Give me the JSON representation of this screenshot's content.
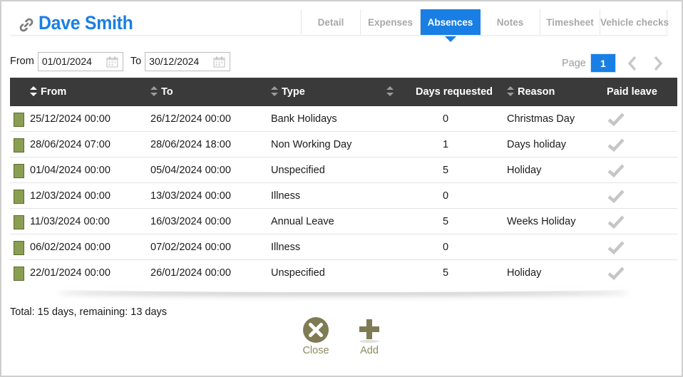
{
  "header": {
    "title": "Dave Smith",
    "accent_color": "#1a7fe4",
    "icon": "link-icon"
  },
  "tabs": [
    {
      "label": "Detail",
      "active": false
    },
    {
      "label": "Expenses",
      "active": false
    },
    {
      "label": "Absences",
      "active": true
    },
    {
      "label": "Notes",
      "active": false
    },
    {
      "label": "Timesheet",
      "active": false
    },
    {
      "label": "Vehicle checks",
      "active": false
    }
  ],
  "filters": {
    "from_label": "From",
    "from_value": "01/01/2024",
    "to_label": "To",
    "to_value": "30/12/2024"
  },
  "pager": {
    "label": "Page",
    "current": "1"
  },
  "table": {
    "columns": [
      "From",
      "To",
      "Type",
      "",
      "Days requested",
      "Reason",
      "Paid leave"
    ],
    "rows": [
      {
        "from": "25/12/2024 00:00",
        "to": "26/12/2024 00:00",
        "type": "Bank Holidays",
        "days": "0",
        "reason": "Christmas Day",
        "paid": true
      },
      {
        "from": "28/06/2024 07:00",
        "to": "28/06/2024 18:00",
        "type": "Non Working Day",
        "days": "1",
        "reason": "Days holiday",
        "paid": true
      },
      {
        "from": "01/04/2024 00:00",
        "to": "05/04/2024 00:00",
        "type": "Unspecified",
        "days": "5",
        "reason": "Holiday",
        "paid": true
      },
      {
        "from": "12/03/2024 00:00",
        "to": "13/03/2024 00:00",
        "type": "Illness",
        "days": "0",
        "reason": "",
        "paid": true
      },
      {
        "from": "11/03/2024 00:00",
        "to": "16/03/2024 00:00",
        "type": "Annual Leave",
        "days": "5",
        "reason": "Weeks Holiday",
        "paid": true
      },
      {
        "from": "06/02/2024 00:00",
        "to": "07/02/2024 00:00",
        "type": "Illness",
        "days": "0",
        "reason": "",
        "paid": true
      },
      {
        "from": "22/01/2024 00:00",
        "to": "26/01/2024 00:00",
        "type": "Unspecified",
        "days": "5",
        "reason": "Holiday",
        "paid": true
      }
    ],
    "swatch_color": "#8a9e52"
  },
  "summary": {
    "total_text": "Total: 15 days, remaining: 13 days"
  },
  "actions": {
    "close_label": "Close",
    "add_label": "Add",
    "icon_color": "#7f7b54"
  }
}
